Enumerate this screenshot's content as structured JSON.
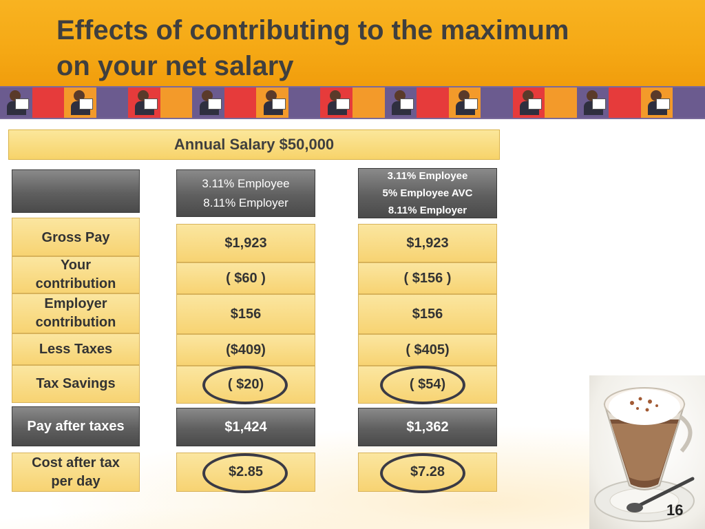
{
  "slide": {
    "title_line1": "Effects of contributing to the maximum",
    "title_line2": "on your net salary",
    "salary_header": "Annual Salary $50,000",
    "page_number": "16"
  },
  "columns": {
    "col1": {
      "line1": "3.11% Employee",
      "line2": "8.11% Employer"
    },
    "col2": {
      "line1": "3.11% Employee",
      "line2": "5% Employee AVC",
      "line3": "8.11% Employer"
    }
  },
  "rows": {
    "gross_pay": {
      "label": "Gross Pay",
      "col1": "$1,923",
      "col2": "$1,923"
    },
    "your_contribution": {
      "label_line1": "Your",
      "label_line2": "contribution",
      "col1": "( $60 )",
      "col2": "( $156 )"
    },
    "employer_contribution": {
      "label_line1": "Employer",
      "label_line2": "contribution",
      "col1": "$156",
      "col2": "$156"
    },
    "less_taxes": {
      "label": "Less Taxes",
      "col1": "($409)",
      "col2": "( $405)"
    },
    "tax_savings": {
      "label": "Tax Savings",
      "col1": "( $20)",
      "col2": "( $54)"
    },
    "pay_after_taxes": {
      "label": "Pay after taxes",
      "col1": "$1,424",
      "col2": "$1,362"
    },
    "cost_per_day": {
      "label_line1": "Cost after tax",
      "label_line2": "per day",
      "col1": "$2.85",
      "col2": "$7.28"
    }
  },
  "colors": {
    "header_orange": "#f5a814",
    "gold_cell": "#f7d372",
    "dark_cell": "#5f5f5f",
    "ring": "#3a3a45"
  },
  "strip_colors": [
    "#6b5b8f",
    "#e63b3b",
    "#f39a2a",
    "#6b5b8f",
    "#e63b3b",
    "#f39a2a",
    "#6b5b8f",
    "#e63b3b",
    "#f39a2a",
    "#6b5b8f",
    "#e63b3b",
    "#f39a2a",
    "#6b5b8f",
    "#e63b3b",
    "#f39a2a",
    "#6b5b8f",
    "#e63b3b",
    "#f39a2a",
    "#6b5b8f",
    "#e63b3b",
    "#f39a2a",
    "#6b5b8f"
  ]
}
